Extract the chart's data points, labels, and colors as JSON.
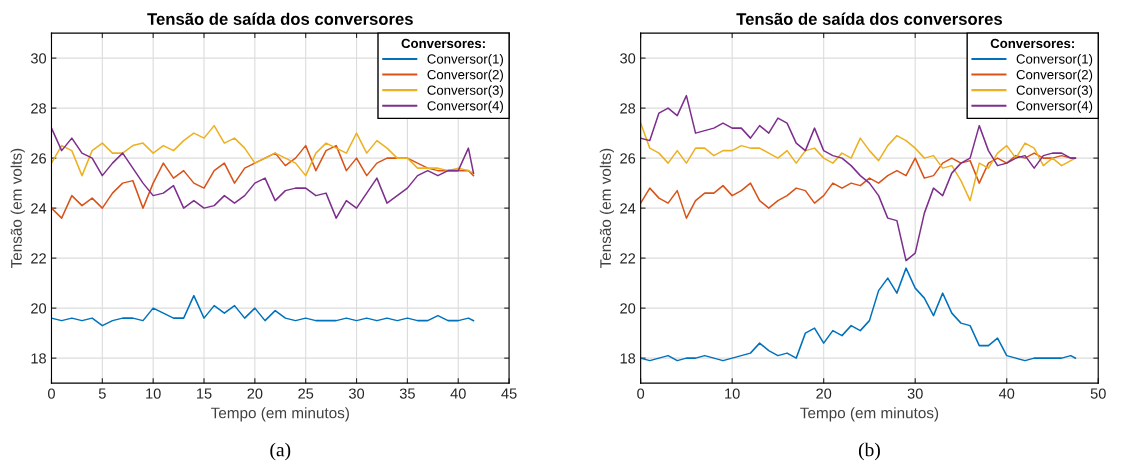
{
  "chart_data": [
    {
      "type": "line",
      "title": "Tensão de saída dos conversores",
      "xlabel": "Tempo (em minutos)",
      "ylabel": "Tensão (em volts)",
      "legend_title": "Conversores:",
      "legend": "top right",
      "grid": true,
      "xlim": [
        0,
        45
      ],
      "xticks": [
        0,
        5,
        10,
        15,
        20,
        25,
        30,
        35,
        40,
        45
      ],
      "ylim": [
        17,
        31
      ],
      "yticks": [
        18,
        20,
        22,
        24,
        26,
        28,
        30
      ],
      "annotations": [
        "(a)"
      ],
      "x": [
        0,
        1,
        2,
        3,
        4,
        5,
        6,
        7,
        8,
        9,
        10,
        11,
        12,
        13,
        14,
        15,
        16,
        17,
        18,
        19,
        20,
        21,
        22,
        23,
        24,
        25,
        26,
        27,
        28,
        29,
        30,
        31,
        32,
        33,
        34,
        35,
        36,
        37,
        38,
        39,
        40,
        41,
        41.5
      ],
      "series": [
        {
          "name": "Conversor(1)",
          "color": "#0072bd",
          "values": [
            19.6,
            19.5,
            19.6,
            19.5,
            19.6,
            19.3,
            19.5,
            19.6,
            19.6,
            19.5,
            20.0,
            19.8,
            19.6,
            19.6,
            20.5,
            19.6,
            20.1,
            19.8,
            20.1,
            19.6,
            20.0,
            19.5,
            19.9,
            19.6,
            19.5,
            19.6,
            19.5,
            19.5,
            19.5,
            19.6,
            19.5,
            19.6,
            19.5,
            19.6,
            19.5,
            19.6,
            19.5,
            19.5,
            19.7,
            19.5,
            19.5,
            19.6,
            19.5
          ]
        },
        {
          "name": "Conversor(2)",
          "color": "#d95319",
          "values": [
            24.0,
            23.6,
            24.5,
            24.1,
            24.4,
            24.0,
            24.6,
            25.0,
            25.1,
            24.0,
            25.0,
            25.8,
            25.2,
            25.5,
            25.0,
            24.8,
            25.5,
            25.8,
            25.0,
            25.6,
            25.8,
            26.0,
            26.2,
            25.7,
            26.0,
            26.5,
            25.5,
            26.3,
            26.5,
            25.5,
            26.0,
            25.3,
            25.8,
            26.0,
            26.0,
            26.0,
            25.8,
            25.6,
            25.5,
            25.5,
            25.5,
            25.5,
            25.3
          ]
        },
        {
          "name": "Conversor(3)",
          "color": "#edb120",
          "values": [
            25.8,
            26.5,
            26.3,
            25.3,
            26.3,
            26.6,
            26.2,
            26.2,
            26.5,
            26.6,
            26.2,
            26.5,
            26.3,
            26.7,
            27.0,
            26.8,
            27.3,
            26.6,
            26.8,
            26.4,
            25.8,
            26.0,
            26.2,
            26.0,
            25.8,
            25.3,
            26.2,
            26.6,
            26.4,
            26.2,
            27.0,
            26.2,
            26.7,
            26.4,
            26.0,
            26.0,
            25.6,
            25.6,
            25.6,
            25.5,
            25.6,
            25.5,
            25.4
          ]
        },
        {
          "name": "Conversor(4)",
          "color": "#7e2f8e",
          "values": [
            27.2,
            26.3,
            26.8,
            26.2,
            26.0,
            25.3,
            25.8,
            26.2,
            25.6,
            25.0,
            24.5,
            24.6,
            24.9,
            24.0,
            24.3,
            24.0,
            24.1,
            24.5,
            24.2,
            24.5,
            25.0,
            25.2,
            24.3,
            24.7,
            24.8,
            24.8,
            24.5,
            24.6,
            23.6,
            24.3,
            24.0,
            24.6,
            25.2,
            24.2,
            24.5,
            24.8,
            25.3,
            25.5,
            25.3,
            25.5,
            25.5,
            26.4,
            25.4
          ]
        }
      ]
    },
    {
      "type": "line",
      "title": "Tensão de saída dos conversores",
      "xlabel": "Tempo (em minutos)",
      "ylabel": "Tensão (em volts)",
      "legend_title": "Conversores:",
      "legend": "top right",
      "grid": true,
      "xlim": [
        0,
        50
      ],
      "xticks": [
        0,
        10,
        20,
        30,
        40,
        50
      ],
      "ylim": [
        17,
        31
      ],
      "yticks": [
        18,
        20,
        22,
        24,
        26,
        28,
        30
      ],
      "annotations": [
        "(b)"
      ],
      "x": [
        0,
        1,
        2,
        3,
        4,
        5,
        6,
        7,
        8,
        9,
        10,
        11,
        12,
        13,
        14,
        15,
        16,
        17,
        18,
        19,
        20,
        21,
        22,
        23,
        24,
        25,
        26,
        27,
        28,
        29,
        30,
        31,
        32,
        33,
        34,
        35,
        36,
        37,
        38,
        39,
        40,
        41,
        42,
        43,
        44,
        45,
        46,
        47,
        47.5
      ],
      "series": [
        {
          "name": "Conversor(1)",
          "color": "#0072bd",
          "values": [
            18.0,
            17.9,
            18.0,
            18.1,
            17.9,
            18.0,
            18.0,
            18.1,
            18.0,
            17.9,
            18.0,
            18.1,
            18.2,
            18.6,
            18.3,
            18.1,
            18.2,
            18.0,
            19.0,
            19.2,
            18.6,
            19.1,
            18.9,
            19.3,
            19.1,
            19.5,
            20.7,
            21.2,
            20.6,
            21.6,
            20.8,
            20.4,
            19.7,
            20.6,
            19.8,
            19.4,
            19.3,
            18.5,
            18.5,
            18.8,
            18.1,
            18.0,
            17.9,
            18.0,
            18.0,
            18.0,
            18.0,
            18.1,
            18.0
          ]
        },
        {
          "name": "Conversor(2)",
          "color": "#d95319",
          "values": [
            24.2,
            24.8,
            24.4,
            24.2,
            24.7,
            23.6,
            24.3,
            24.6,
            24.6,
            24.9,
            24.5,
            24.7,
            25.0,
            24.3,
            24.0,
            24.3,
            24.5,
            24.8,
            24.7,
            24.2,
            24.5,
            25.0,
            24.8,
            25.0,
            24.9,
            25.2,
            25.0,
            25.3,
            25.5,
            25.3,
            26.0,
            25.2,
            25.3,
            25.8,
            26.0,
            25.8,
            25.9,
            25.0,
            25.8,
            26.0,
            25.8,
            26.1,
            26.0,
            26.2,
            26.0,
            26.0,
            26.1,
            26.0,
            26.0
          ]
        },
        {
          "name": "Conversor(3)",
          "color": "#edb120",
          "values": [
            27.4,
            26.4,
            26.2,
            25.8,
            26.3,
            25.8,
            26.4,
            26.4,
            26.1,
            26.3,
            26.3,
            26.5,
            26.4,
            26.4,
            26.2,
            26.0,
            26.3,
            25.8,
            26.3,
            26.4,
            26.0,
            25.8,
            26.2,
            26.0,
            26.8,
            26.3,
            25.9,
            26.5,
            26.9,
            26.7,
            26.4,
            26.0,
            26.1,
            25.6,
            25.7,
            25.1,
            24.3,
            25.8,
            25.6,
            26.2,
            26.5,
            26.0,
            26.6,
            26.4,
            25.7,
            26.0,
            25.7,
            25.9,
            26.0
          ]
        },
        {
          "name": "Conversor(4)",
          "color": "#7e2f8e",
          "values": [
            26.8,
            26.7,
            27.8,
            28.0,
            27.7,
            28.5,
            27.0,
            27.1,
            27.2,
            27.4,
            27.2,
            27.2,
            26.8,
            27.3,
            27.0,
            27.6,
            27.4,
            26.6,
            26.3,
            27.2,
            26.3,
            26.1,
            26.0,
            25.7,
            25.3,
            25.0,
            24.5,
            23.6,
            23.5,
            21.9,
            22.2,
            23.8,
            24.8,
            24.5,
            25.4,
            25.8,
            26.0,
            27.3,
            26.3,
            25.7,
            25.8,
            26.0,
            26.1,
            25.6,
            26.1,
            26.2,
            26.2,
            26.0,
            26.0
          ]
        }
      ]
    }
  ]
}
